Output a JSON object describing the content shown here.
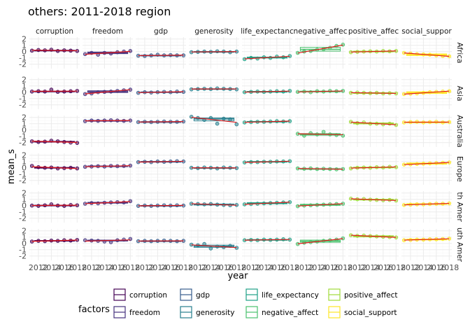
{
  "chart_data": {
    "type": "scatter",
    "title": "others: 2011-2018 region",
    "xlabel": "year",
    "ylabel": "mean_s",
    "x_ticks": [
      2012,
      2014,
      2016,
      2018
    ],
    "x_tick_labels": [
      "2012",
      "2014",
      "2016",
      "2018"
    ],
    "y_ticks": [
      -2,
      -1,
      0,
      1,
      2
    ],
    "y_tick_labels": [
      "-2",
      "-1",
      "0",
      "1",
      "2"
    ],
    "xlim": [
      2010.6,
      2018.4
    ],
    "ylim": [
      -2.7,
      2.3
    ],
    "years": [
      2011,
      2012,
      2013,
      2014,
      2015,
      2016,
      2017,
      2018
    ],
    "grid": true,
    "legend_position": "bottom",
    "legend_title": "factors",
    "factors": [
      "corruption",
      "freedom",
      "gdp",
      "generosity",
      "life_expectancy",
      "negative_affect",
      "positive_affect",
      "social_support"
    ],
    "factor_labels": [
      "corruption",
      "freedom",
      "gdp",
      "generosity",
      "life_expectancy",
      "negative_affect",
      "positive_affect",
      "social_support"
    ],
    "column_strips": [
      "corruption",
      "freedom",
      "gdp",
      "generosity",
      "life_expectanc",
      "negative_affec",
      "positive_affec",
      "social_suppor"
    ],
    "regions": [
      "Africa",
      "Asia",
      "Australia",
      "Europe",
      "North America",
      "South America"
    ],
    "row_strips": [
      "Africa",
      "Asia",
      "Australia",
      "Europe",
      "th Amer",
      "uth Amer"
    ],
    "colors": {
      "corruption": "#440154",
      "freedom": "#46337e",
      "gdp": "#365c8d",
      "generosity": "#277f8e",
      "life_expectancy": "#1fa187",
      "negative_affect": "#4ac16d",
      "positive_affect": "#a0da39",
      "social_support": "#fde725",
      "trend_line": "#e41a1c",
      "point_fill_default": "#e05a7a",
      "panel_background": "#ffffff",
      "grid_major": "#ebebeb",
      "grid_minor": "#f5f5f5"
    },
    "panels": [
      {
        "region": "Africa",
        "factor": "corruption",
        "values": [
          0.15,
          0.25,
          0.2,
          0.3,
          0.1,
          0.2,
          0.15,
          0.1
        ]
      },
      {
        "region": "Africa",
        "factor": "freedom",
        "values": [
          -0.4,
          -0.2,
          -0.5,
          -0.2,
          -0.3,
          -0.1,
          0.0,
          0.1
        ]
      },
      {
        "region": "Africa",
        "factor": "gdp",
        "values": [
          -0.65,
          -0.7,
          -0.6,
          -0.5,
          -0.6,
          -0.55,
          -0.6,
          -0.6
        ]
      },
      {
        "region": "Africa",
        "factor": "generosity",
        "values": [
          -0.1,
          -0.05,
          0.0,
          -0.05,
          0.05,
          0.0,
          -0.1,
          0.0
        ]
      },
      {
        "region": "Africa",
        "factor": "life_expectancy",
        "values": [
          -1.2,
          -1.0,
          -1.1,
          -0.9,
          -1.0,
          -0.8,
          -0.9,
          -0.7
        ]
      },
      {
        "region": "Africa",
        "factor": "negative_affect",
        "values": [
          -0.2,
          0.0,
          0.1,
          0.3,
          0.4,
          0.6,
          0.9,
          1.1
        ]
      },
      {
        "region": "Africa",
        "factor": "positive_affect",
        "values": [
          -0.1,
          -0.05,
          0.0,
          0.05,
          0.0,
          0.1,
          0.05,
          0.1
        ]
      },
      {
        "region": "Africa",
        "factor": "social_support",
        "values": [
          -0.2,
          -0.3,
          -0.4,
          -0.45,
          -0.5,
          -0.6,
          -0.7,
          -0.75
        ]
      },
      {
        "region": "Asia",
        "factor": "corruption",
        "values": [
          0.1,
          0.15,
          0.1,
          0.4,
          0.05,
          0.1,
          0.15,
          0.2
        ]
      },
      {
        "region": "Asia",
        "factor": "freedom",
        "values": [
          -0.3,
          -0.2,
          0.0,
          0.05,
          0.1,
          0.2,
          0.3,
          0.4
        ]
      },
      {
        "region": "Asia",
        "factor": "gdp",
        "values": [
          -0.1,
          0.0,
          -0.05,
          0.0,
          0.05,
          0.0,
          0.1,
          0.05
        ]
      },
      {
        "region": "Asia",
        "factor": "generosity",
        "values": [
          0.45,
          0.5,
          0.55,
          0.5,
          0.6,
          0.55,
          0.5,
          0.45
        ]
      },
      {
        "region": "Asia",
        "factor": "life_expectancy",
        "values": [
          0.0,
          0.05,
          0.1,
          0.05,
          0.1,
          0.15,
          0.1,
          0.2
        ]
      },
      {
        "region": "Asia",
        "factor": "negative_affect",
        "values": [
          0.05,
          0.1,
          0.0,
          0.15,
          0.1,
          0.2,
          0.15,
          0.2
        ]
      },
      {
        "region": "Asia",
        "factor": "positive_affect",
        "values": [
          -0.1,
          -0.05,
          -0.1,
          -0.15,
          -0.1,
          -0.2,
          -0.15,
          -0.2
        ]
      },
      {
        "region": "Asia",
        "factor": "social_support",
        "values": [
          -0.3,
          -0.25,
          -0.2,
          -0.1,
          0.0,
          0.05,
          0.1,
          0.15
        ]
      },
      {
        "region": "Australia",
        "factor": "corruption",
        "values": [
          -1.8,
          -1.9,
          -1.85,
          -1.7,
          -1.8,
          -1.9,
          -2.0,
          -2.05
        ]
      },
      {
        "region": "Australia",
        "factor": "freedom",
        "values": [
          1.4,
          1.5,
          1.45,
          1.5,
          1.55,
          1.5,
          1.45,
          1.5
        ]
      },
      {
        "region": "Australia",
        "factor": "gdp",
        "values": [
          1.25,
          1.3,
          1.25,
          1.3,
          1.35,
          1.3,
          1.3,
          1.35
        ]
      },
      {
        "region": "Australia",
        "factor": "generosity",
        "values": [
          2.1,
          1.9,
          1.6,
          1.9,
          1.0,
          1.8,
          1.7,
          0.9
        ]
      },
      {
        "region": "Australia",
        "factor": "life_expectancy",
        "values": [
          1.2,
          1.25,
          1.3,
          1.3,
          1.35,
          1.4,
          1.35,
          1.4
        ]
      },
      {
        "region": "Australia",
        "factor": "negative_affect",
        "values": [
          -0.6,
          -0.9,
          -0.5,
          -0.7,
          -0.3,
          -0.7,
          -0.8,
          -0.9
        ]
      },
      {
        "region": "Australia",
        "factor": "positive_affect",
        "values": [
          1.3,
          1.1,
          1.2,
          1.0,
          1.0,
          0.9,
          1.0,
          0.8
        ]
      },
      {
        "region": "Australia",
        "factor": "social_support",
        "values": [
          1.2,
          1.25,
          1.3,
          1.2,
          1.25,
          1.3,
          1.2,
          1.25
        ]
      },
      {
        "region": "Europe",
        "factor": "corruption",
        "values": [
          0.3,
          0.1,
          0.0,
          0.05,
          -0.1,
          -0.05,
          0.0,
          -0.1
        ]
      },
      {
        "region": "Europe",
        "factor": "freedom",
        "values": [
          0.15,
          0.2,
          0.25,
          0.2,
          0.3,
          0.25,
          0.3,
          0.35
        ]
      },
      {
        "region": "Europe",
        "factor": "gdp",
        "values": [
          0.9,
          0.95,
          0.9,
          1.0,
          0.95,
          1.0,
          1.05,
          1.0
        ]
      },
      {
        "region": "Europe",
        "factor": "generosity",
        "values": [
          0.0,
          -0.05,
          0.05,
          0.0,
          -0.1,
          0.05,
          0.0,
          -0.05
        ]
      },
      {
        "region": "Europe",
        "factor": "life_expectancy",
        "values": [
          0.85,
          0.9,
          0.9,
          0.95,
          0.95,
          1.0,
          1.0,
          1.05
        ]
      },
      {
        "region": "Europe",
        "factor": "negative_affect",
        "values": [
          -0.1,
          -0.15,
          -0.1,
          -0.2,
          -0.15,
          -0.2,
          -0.25,
          -0.2
        ]
      },
      {
        "region": "Europe",
        "factor": "positive_affect",
        "values": [
          -0.1,
          0.0,
          0.05,
          0.0,
          0.1,
          0.05,
          0.15,
          0.1
        ]
      },
      {
        "region": "Europe",
        "factor": "social_support",
        "values": [
          0.5,
          0.55,
          0.6,
          0.65,
          0.7,
          0.75,
          0.8,
          0.85
        ]
      },
      {
        "region": "North America",
        "factor": "corruption",
        "values": [
          0.0,
          -0.05,
          0.05,
          0.2,
          0.0,
          -0.05,
          0.1,
          0.05
        ]
      },
      {
        "region": "North America",
        "factor": "freedom",
        "values": [
          0.3,
          0.4,
          0.35,
          0.45,
          0.5,
          0.55,
          0.5,
          0.7
        ]
      },
      {
        "region": "North America",
        "factor": "gdp",
        "values": [
          -0.05,
          0.0,
          -0.05,
          0.0,
          0.05,
          0.0,
          0.05,
          0.0
        ]
      },
      {
        "region": "North America",
        "factor": "generosity",
        "values": [
          0.3,
          0.25,
          0.2,
          0.25,
          0.15,
          0.1,
          0.05,
          0.1
        ]
      },
      {
        "region": "North America",
        "factor": "life_expectancy",
        "values": [
          0.2,
          0.25,
          0.3,
          0.35,
          0.4,
          0.45,
          0.5,
          0.55
        ]
      },
      {
        "region": "North America",
        "factor": "negative_affect",
        "values": [
          -0.1,
          0.0,
          0.05,
          0.1,
          0.15,
          0.2,
          0.25,
          0.3
        ]
      },
      {
        "region": "North America",
        "factor": "positive_affect",
        "values": [
          1.1,
          1.0,
          1.05,
          0.95,
          0.9,
          0.85,
          0.9,
          0.8
        ]
      },
      {
        "region": "North America",
        "factor": "social_support",
        "values": [
          0.1,
          0.15,
          0.2,
          0.2,
          0.25,
          0.3,
          0.3,
          0.35
        ]
      },
      {
        "region": "South America",
        "factor": "corruption",
        "values": [
          0.3,
          0.4,
          0.35,
          0.45,
          0.4,
          0.5,
          0.45,
          0.55
        ]
      },
      {
        "region": "South America",
        "factor": "freedom",
        "values": [
          0.5,
          0.45,
          0.4,
          0.3,
          0.2,
          0.5,
          0.6,
          0.7
        ]
      },
      {
        "region": "South America",
        "factor": "gdp",
        "values": [
          0.35,
          0.4,
          0.35,
          0.4,
          0.45,
          0.4,
          0.35,
          0.4
        ]
      },
      {
        "region": "South America",
        "factor": "generosity",
        "values": [
          -0.2,
          -0.3,
          -0.1,
          -0.8,
          -0.5,
          -0.6,
          -0.4,
          -0.7
        ]
      },
      {
        "region": "South America",
        "factor": "life_expectancy",
        "values": [
          0.5,
          0.55,
          0.5,
          0.6,
          0.55,
          0.6,
          0.65,
          0.6
        ]
      },
      {
        "region": "South America",
        "factor": "negative_affect",
        "values": [
          -0.1,
          0.1,
          0.2,
          0.3,
          0.4,
          0.5,
          0.6,
          0.8
        ]
      },
      {
        "region": "South America",
        "factor": "positive_affect",
        "values": [
          1.3,
          1.2,
          1.25,
          1.15,
          1.1,
          1.05,
          1.0,
          0.95
        ]
      },
      {
        "region": "South America",
        "factor": "social_support",
        "values": [
          0.5,
          0.55,
          0.6,
          0.6,
          0.65,
          0.65,
          0.7,
          0.75
        ]
      }
    ]
  }
}
